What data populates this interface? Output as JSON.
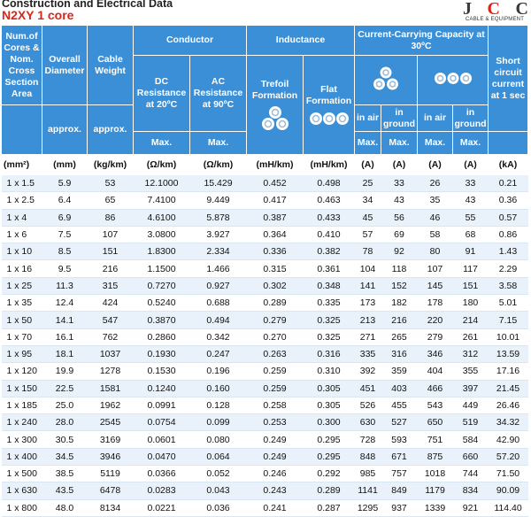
{
  "title": "Construction and Electrical Data",
  "subtitle": "N2XY 1 core",
  "logo": {
    "letters": [
      "J",
      "C",
      "C"
    ],
    "tagline": "CABLE & EQUIPMENT",
    "accent": "#d9261c"
  },
  "colors": {
    "header_bg": "#3a8fd6",
    "row_alt": "#e9f2fa",
    "title_red": "#d9261c"
  },
  "headers": {
    "cores_section": "Num.of Cores & Nom. Cross Section Area",
    "overall_diameter": "Overall Diameter",
    "cable_weight": "Cable Weight",
    "conductor": "Conductor",
    "dc_resistance": "DC Resistance at 20ºC",
    "ac_resistance": "AC Resistance at 90ºC",
    "inductance": "Inductance",
    "trefoil": "Trefoil Formation",
    "flat": "Flat Formation",
    "current_capacity": "Current-Carrying Capacity at 30ºC",
    "short_circuit": "Short circuit current at 1 sec",
    "in_air": "in air",
    "in_ground": "in ground",
    "approx": "approx.",
    "max": "Max."
  },
  "icons": {
    "trefoil": "trefoil-cables-icon",
    "flat": "flat-cables-icon"
  },
  "units": [
    "(mm²)",
    "(mm)",
    "(kg/km)",
    "(Ω/km)",
    "(Ω/km)",
    "(mH/km)",
    "(mH/km)",
    "(A)",
    "(A)",
    "(A)",
    "(A)",
    "(kA)"
  ],
  "rows": [
    [
      "1 x 1.5",
      "5.9",
      "53",
      "12.1000",
      "15.429",
      "0.452",
      "0.498",
      "25",
      "33",
      "26",
      "33",
      "0.21"
    ],
    [
      "1 x 2.5",
      "6.4",
      "65",
      "7.4100",
      "9.449",
      "0.417",
      "0.463",
      "34",
      "43",
      "35",
      "43",
      "0.36"
    ],
    [
      "1 x 4",
      "6.9",
      "86",
      "4.6100",
      "5.878",
      "0.387",
      "0.433",
      "45",
      "56",
      "46",
      "55",
      "0.57"
    ],
    [
      "1 x 6",
      "7.5",
      "107",
      "3.0800",
      "3.927",
      "0.364",
      "0.410",
      "57",
      "69",
      "58",
      "68",
      "0.86"
    ],
    [
      "1 x 10",
      "8.5",
      "151",
      "1.8300",
      "2.334",
      "0.336",
      "0.382",
      "78",
      "92",
      "80",
      "91",
      "1.43"
    ],
    [
      "1 x 16",
      "9.5",
      "216",
      "1.1500",
      "1.466",
      "0.315",
      "0.361",
      "104",
      "118",
      "107",
      "117",
      "2.29"
    ],
    [
      "1 x 25",
      "11.3",
      "315",
      "0.7270",
      "0.927",
      "0.302",
      "0.348",
      "141",
      "152",
      "145",
      "151",
      "3.58"
    ],
    [
      "1 x 35",
      "12.4",
      "424",
      "0.5240",
      "0.688",
      "0.289",
      "0.335",
      "173",
      "182",
      "178",
      "180",
      "5.01"
    ],
    [
      "1 x 50",
      "14.1",
      "547",
      "0.3870",
      "0.494",
      "0.279",
      "0.325",
      "213",
      "216",
      "220",
      "214",
      "7.15"
    ],
    [
      "1 x 70",
      "16.1",
      "762",
      "0.2860",
      "0.342",
      "0.270",
      "0.325",
      "271",
      "265",
      "279",
      "261",
      "10.01"
    ],
    [
      "1 x 95",
      "18.1",
      "1037",
      "0.1930",
      "0.247",
      "0.263",
      "0.316",
      "335",
      "316",
      "346",
      "312",
      "13.59"
    ],
    [
      "1 x 120",
      "19.9",
      "1278",
      "0.1530",
      "0.196",
      "0.259",
      "0.310",
      "392",
      "359",
      "404",
      "355",
      "17.16"
    ],
    [
      "1 x 150",
      "22.5",
      "1581",
      "0.1240",
      "0.160",
      "0.259",
      "0.305",
      "451",
      "403",
      "466",
      "397",
      "21.45"
    ],
    [
      "1 x 185",
      "25.0",
      "1962",
      "0.0991",
      "0.128",
      "0.258",
      "0.305",
      "526",
      "455",
      "543",
      "449",
      "26.46"
    ],
    [
      "1 x 240",
      "28.0",
      "2545",
      "0.0754",
      "0.099",
      "0.253",
      "0.300",
      "630",
      "527",
      "650",
      "519",
      "34.32"
    ],
    [
      "1 x 300",
      "30.5",
      "3169",
      "0.0601",
      "0.080",
      "0.249",
      "0.295",
      "728",
      "593",
      "751",
      "584",
      "42.90"
    ],
    [
      "1 x 400",
      "34.5",
      "3946",
      "0.0470",
      "0.064",
      "0.249",
      "0.295",
      "848",
      "671",
      "875",
      "660",
      "57.20"
    ],
    [
      "1 x 500",
      "38.5",
      "5119",
      "0.0366",
      "0.052",
      "0.246",
      "0.292",
      "985",
      "757",
      "1018",
      "744",
      "71.50"
    ],
    [
      "1 x 630",
      "43.5",
      "6478",
      "0.0283",
      "0.043",
      "0.243",
      "0.289",
      "1141",
      "849",
      "1179",
      "834",
      "90.09"
    ],
    [
      "1 x 800",
      "48.0",
      "8134",
      "0.0221",
      "0.036",
      "0.241",
      "0.287",
      "1295",
      "937",
      "1339",
      "921",
      "114.40"
    ]
  ]
}
